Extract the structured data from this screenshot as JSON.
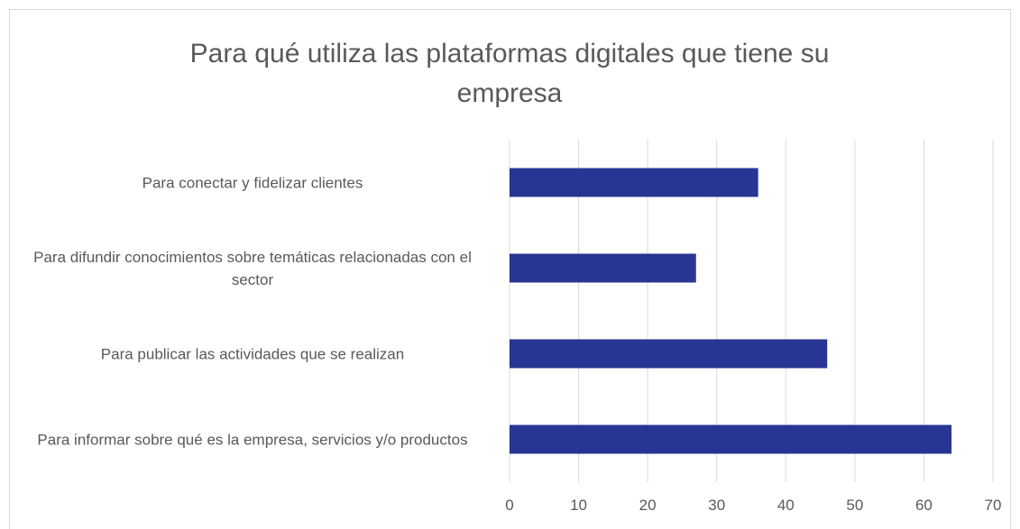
{
  "chart_data": {
    "type": "bar",
    "orientation": "horizontal",
    "title": "Para qué utiliza las plataformas digitales que tiene su empresa",
    "categories": [
      "Para conectar y fidelizar clientes",
      "Para difundir conocimientos sobre temáticas relacionadas con el sector",
      "Para publicar las actividades que se realizan",
      "Para informar sobre qué es la empresa, servicios y/o productos"
    ],
    "values": [
      36,
      27,
      46,
      64
    ],
    "color": "#283593",
    "xlim": [
      0,
      70
    ],
    "xticks": [
      0,
      10,
      20,
      30,
      40,
      50,
      60,
      70
    ],
    "grid": true
  }
}
